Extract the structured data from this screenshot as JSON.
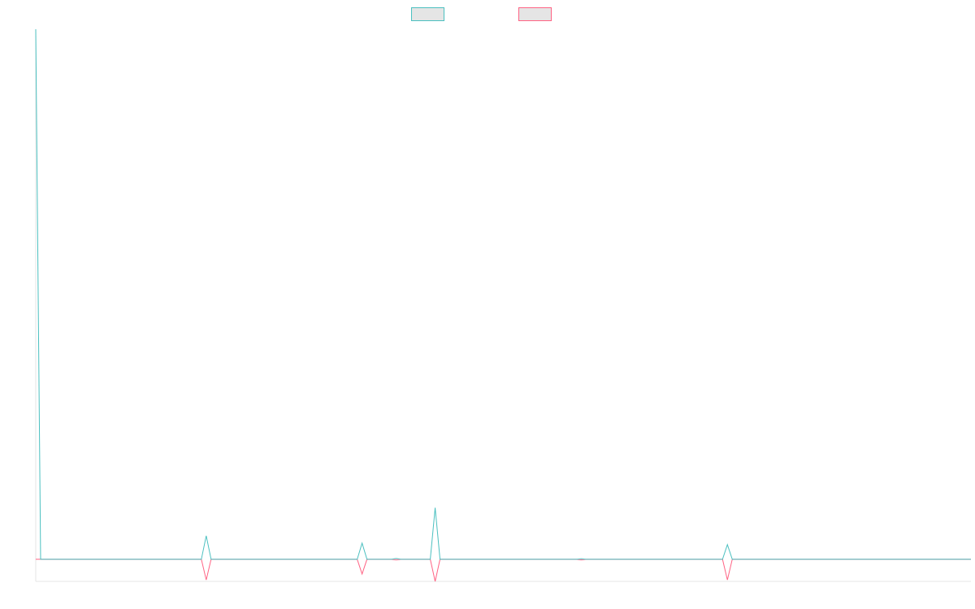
{
  "chart_data": {
    "type": "line",
    "title": "",
    "xlabel": "",
    "ylabel": "",
    "grid": false,
    "legend": "top-center",
    "xlim": [
      0,
      192
    ],
    "ylim": [
      -0.75,
      18
    ],
    "series": [
      {
        "name": "",
        "color": "#4bc0c0",
        "fill": "#e5e5e5",
        "points": [
          [
            0,
            18
          ],
          [
            1,
            0
          ],
          [
            34,
            0
          ],
          [
            35,
            0.8
          ],
          [
            36,
            0
          ],
          [
            66,
            0
          ],
          [
            67,
            0.55
          ],
          [
            68,
            0
          ],
          [
            73,
            0
          ],
          [
            74,
            0.03
          ],
          [
            75,
            0
          ],
          [
            81,
            0
          ],
          [
            82,
            1.75
          ],
          [
            83,
            0
          ],
          [
            111,
            0
          ],
          [
            112,
            0.02
          ],
          [
            113,
            0
          ],
          [
            141,
            0
          ],
          [
            142,
            0.5
          ],
          [
            143,
            0
          ],
          [
            192,
            0
          ]
        ]
      },
      {
        "name": "",
        "color": "#ff6384",
        "fill": "#e5e5e5",
        "points": [
          [
            0,
            0
          ],
          [
            34,
            0
          ],
          [
            35,
            -0.7
          ],
          [
            36,
            0
          ],
          [
            66,
            0
          ],
          [
            67,
            -0.5
          ],
          [
            68,
            0
          ],
          [
            73,
            0
          ],
          [
            74,
            -0.02
          ],
          [
            75,
            0
          ],
          [
            81,
            0
          ],
          [
            82,
            -0.75
          ],
          [
            83,
            0
          ],
          [
            111,
            0
          ],
          [
            112,
            -0.02
          ],
          [
            113,
            0
          ],
          [
            141,
            0
          ],
          [
            142,
            -0.7
          ],
          [
            143,
            0
          ],
          [
            192,
            0
          ]
        ]
      }
    ]
  }
}
